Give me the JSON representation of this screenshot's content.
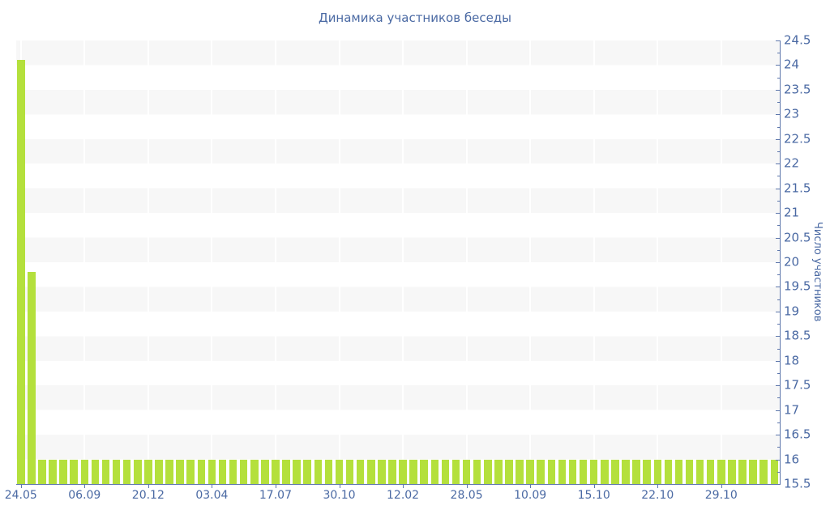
{
  "chart_data": {
    "type": "bar",
    "title": "Динамика участников беседы",
    "xlabel": "",
    "ylabel": "Число участников",
    "ylim": [
      15.5,
      24.5
    ],
    "ytick_step": 0.5,
    "ytick_minor_step": 0.25,
    "y_tick_labels": [
      "24.5",
      "24",
      "23.5",
      "23",
      "22.5",
      "22",
      "21.5",
      "21",
      "20.5",
      "20",
      "19.5",
      "19",
      "18.5",
      "18",
      "17.5",
      "17",
      "16.5",
      "16",
      "15.5"
    ],
    "x_tick_labels": [
      "24.05",
      "06.09",
      "20.12",
      "03.04",
      "17.07",
      "30.10",
      "12.02",
      "28.05",
      "10.09",
      "15.10",
      "22.10",
      "29.10"
    ],
    "x_label_every_n_bars": 6,
    "bar_count": 72,
    "values": [
      24.1,
      19.8,
      16,
      16,
      16,
      16,
      16,
      16,
      16,
      16,
      16,
      16,
      16,
      16,
      16,
      16,
      16,
      16,
      16,
      16,
      16,
      16,
      16,
      16,
      16,
      16,
      16,
      16,
      16,
      16,
      16,
      16,
      16,
      16,
      16,
      16,
      16,
      16,
      16,
      16,
      16,
      16,
      16,
      16,
      16,
      16,
      16,
      16,
      16,
      16,
      16,
      16,
      16,
      16,
      16,
      16,
      16,
      16,
      16,
      16,
      16,
      16,
      16,
      16,
      16,
      16,
      16,
      16,
      16,
      16,
      16,
      16
    ],
    "legend": "none",
    "grid": "horizontal-bands-alternating",
    "axis_position": "right",
    "colors": {
      "bar": "#b4e03c",
      "text": "#4a69a3",
      "axis": "#5e77ac",
      "band": "#f7f7f7",
      "background": "#ffffff"
    }
  }
}
